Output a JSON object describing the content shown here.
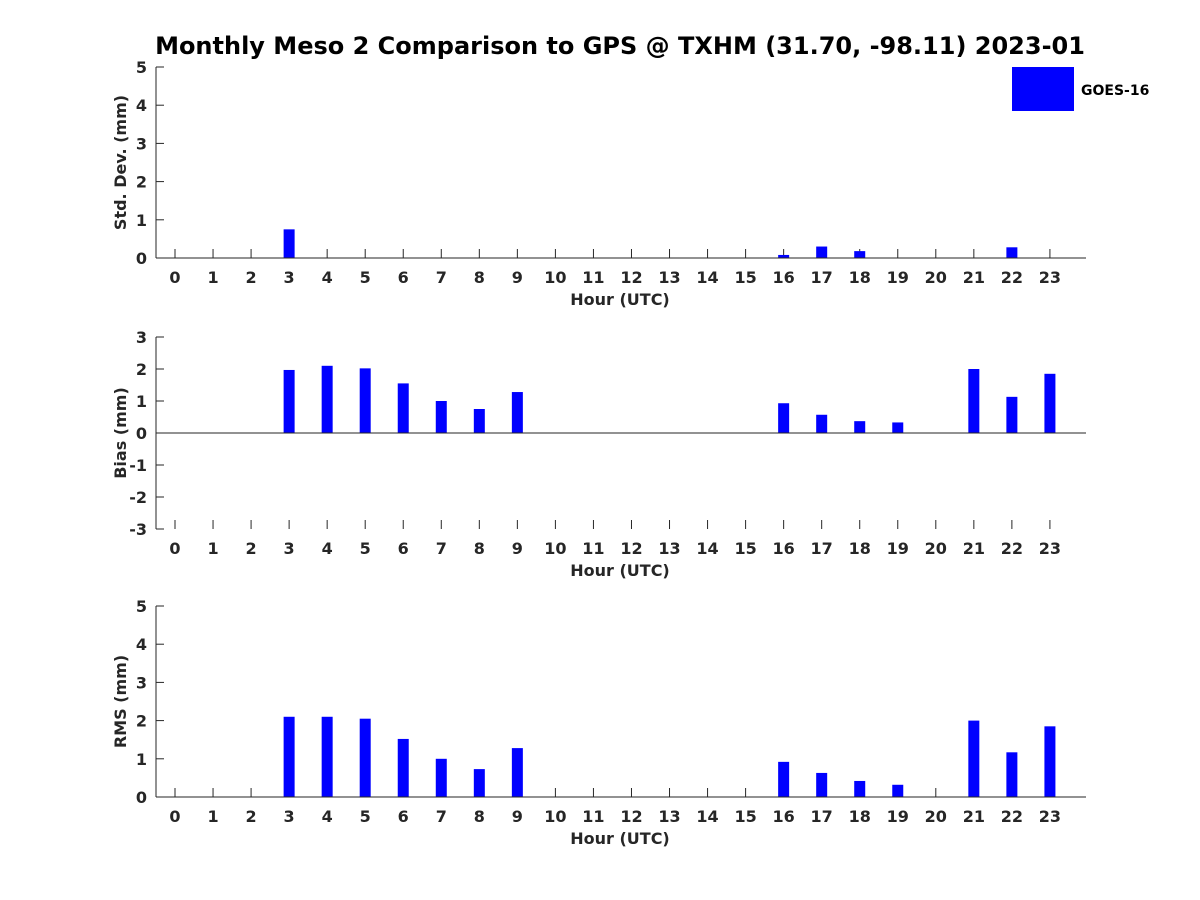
{
  "title": "Monthly Meso 2 Comparison to GPS @ TXHM (31.70, -98.11) 2023-01",
  "legend": {
    "label": "GOES-16",
    "color": "#0000ff",
    "position": "top-right"
  },
  "chart_data": [
    {
      "type": "bar",
      "name": "std",
      "xlabel": "Hour (UTC)",
      "ylabel": "Std. Dev. (mm)",
      "ylim": [
        0,
        5
      ],
      "yticks": [
        "0",
        "1",
        "2",
        "3",
        "4",
        "5"
      ],
      "categories": [
        "0",
        "1",
        "2",
        "3",
        "4",
        "5",
        "6",
        "7",
        "8",
        "9",
        "10",
        "11",
        "12",
        "13",
        "14",
        "15",
        "16",
        "17",
        "18",
        "19",
        "20",
        "21",
        "22",
        "23"
      ],
      "values": [
        null,
        null,
        null,
        0.75,
        null,
        null,
        null,
        null,
        null,
        null,
        null,
        null,
        null,
        null,
        null,
        null,
        0.08,
        0.3,
        0.18,
        null,
        null,
        null,
        0.28,
        null
      ],
      "grid": false
    },
    {
      "type": "bar",
      "name": "bias",
      "xlabel": "Hour (UTC)",
      "ylabel": "Bias (mm)",
      "ylim": [
        -3,
        3
      ],
      "yticks": [
        "-3",
        "-2",
        "-1",
        "0",
        "1",
        "2",
        "3"
      ],
      "categories": [
        "0",
        "1",
        "2",
        "3",
        "4",
        "5",
        "6",
        "7",
        "8",
        "9",
        "10",
        "11",
        "12",
        "13",
        "14",
        "15",
        "16",
        "17",
        "18",
        "19",
        "20",
        "21",
        "22",
        "23"
      ],
      "values": [
        null,
        null,
        null,
        1.97,
        2.1,
        2.02,
        1.55,
        1.0,
        0.75,
        1.28,
        null,
        null,
        null,
        null,
        null,
        null,
        0.93,
        0.57,
        0.37,
        0.33,
        null,
        2.0,
        1.13,
        1.85
      ],
      "grid": false
    },
    {
      "type": "bar",
      "name": "rms",
      "xlabel": "Hour (UTC)",
      "ylabel": "RMS (mm)",
      "ylim": [
        0,
        5
      ],
      "yticks": [
        "0",
        "1",
        "2",
        "3",
        "4",
        "5"
      ],
      "categories": [
        "0",
        "1",
        "2",
        "3",
        "4",
        "5",
        "6",
        "7",
        "8",
        "9",
        "10",
        "11",
        "12",
        "13",
        "14",
        "15",
        "16",
        "17",
        "18",
        "19",
        "20",
        "21",
        "22",
        "23"
      ],
      "values": [
        null,
        null,
        null,
        2.1,
        2.1,
        2.05,
        1.52,
        1.0,
        0.73,
        1.28,
        null,
        null,
        null,
        null,
        null,
        null,
        0.92,
        0.63,
        0.42,
        0.32,
        null,
        2.0,
        1.17,
        1.85
      ],
      "grid": false
    }
  ]
}
